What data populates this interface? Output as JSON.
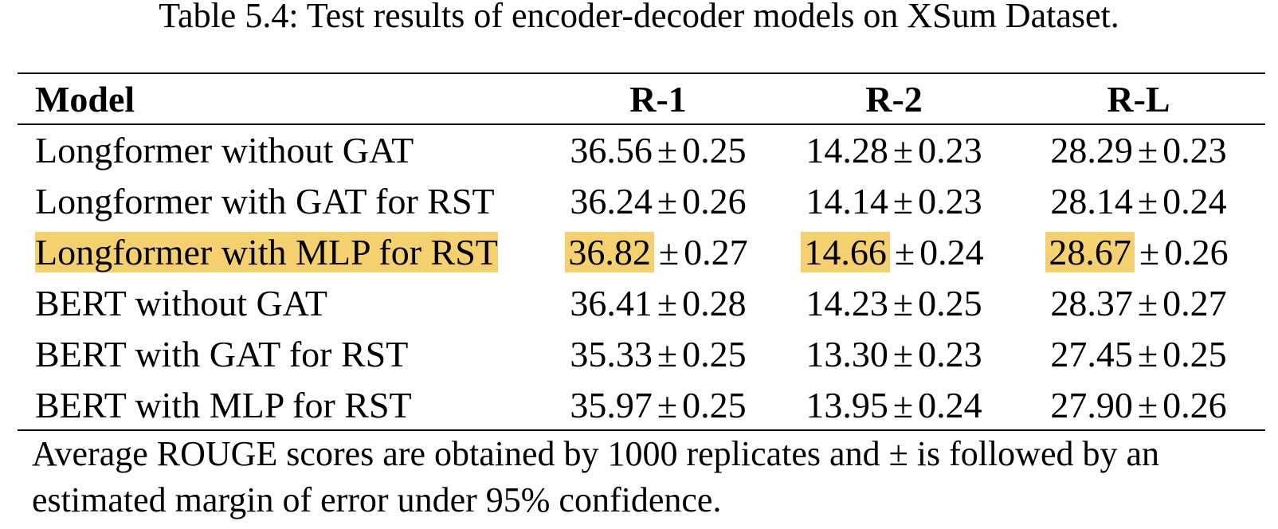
{
  "caption": "Table 5.4: Test results of encoder-decoder models on XSum Dataset.",
  "table": {
    "headers": [
      "Model",
      "R-1",
      "R-2",
      "R-L"
    ],
    "rows": [
      {
        "model": "Longformer without GAT",
        "highlighted": false,
        "r1": {
          "mean": "36.56",
          "margin": "0.25"
        },
        "r2": {
          "mean": "14.28",
          "margin": "0.23"
        },
        "rl": {
          "mean": "28.29",
          "margin": "0.23"
        }
      },
      {
        "model": "Longformer with GAT for RST",
        "highlighted": false,
        "r1": {
          "mean": "36.24",
          "margin": "0.26"
        },
        "r2": {
          "mean": "14.14",
          "margin": "0.23"
        },
        "rl": {
          "mean": "28.14",
          "margin": "0.24"
        }
      },
      {
        "model": "Longformer with MLP for RST",
        "highlighted": true,
        "r1": {
          "mean": "36.82",
          "margin": "0.27"
        },
        "r2": {
          "mean": "14.66",
          "margin": "0.24"
        },
        "rl": {
          "mean": "28.67",
          "margin": "0.26"
        }
      },
      {
        "model": "BERT without GAT",
        "highlighted": false,
        "r1": {
          "mean": "36.41",
          "margin": "0.28"
        },
        "r2": {
          "mean": "14.23",
          "margin": "0.25"
        },
        "rl": {
          "mean": "28.37",
          "margin": "0.27"
        }
      },
      {
        "model": "BERT with GAT for RST",
        "highlighted": false,
        "r1": {
          "mean": "35.33",
          "margin": "0.25"
        },
        "r2": {
          "mean": "13.30",
          "margin": "0.23"
        },
        "rl": {
          "mean": "27.45",
          "margin": "0.25"
        }
      },
      {
        "model": "BERT with MLP for RST",
        "highlighted": false,
        "r1": {
          "mean": "35.97",
          "margin": "0.25"
        },
        "r2": {
          "mean": "13.95",
          "margin": "0.24"
        },
        "rl": {
          "mean": "27.90",
          "margin": "0.26"
        }
      }
    ],
    "plus_minus_symbol": "±"
  },
  "footnote": "Average ROUGE scores are obtained by 1000 replicates and ± is followed by an estimated margin of error under 95% confidence.",
  "colors": {
    "highlight": "#f5d06f",
    "text": "#000000",
    "background": "#ffffff"
  }
}
